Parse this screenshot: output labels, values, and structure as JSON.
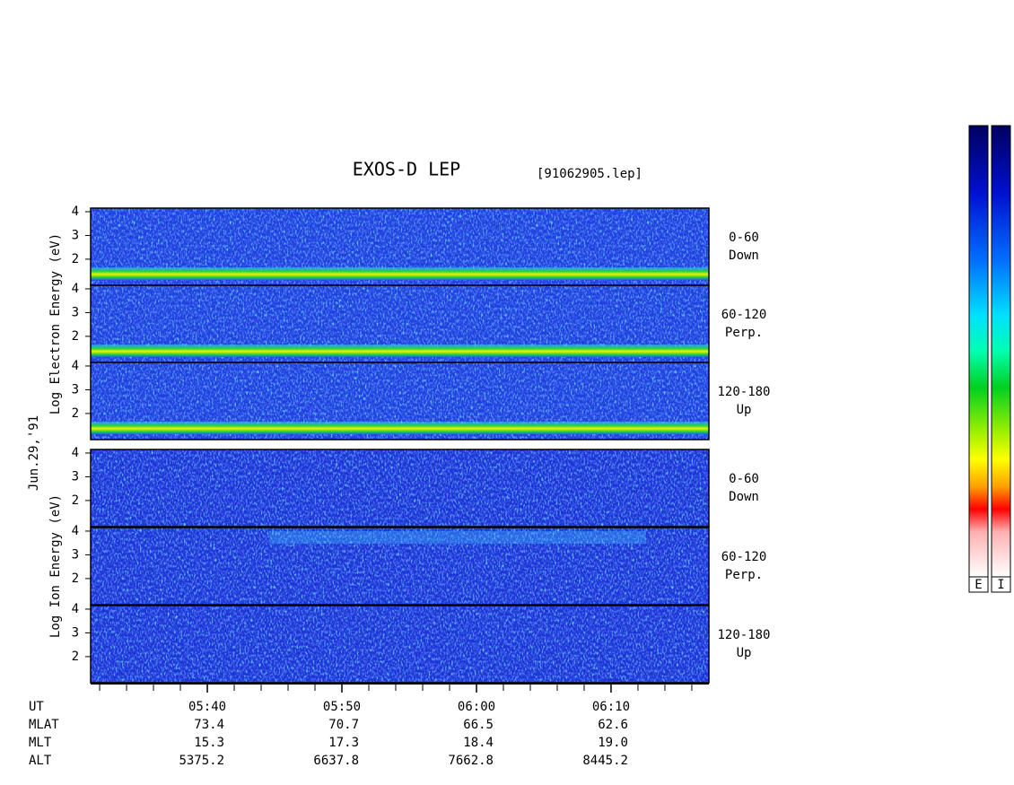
{
  "chart_data": {
    "type": "spectrogram",
    "title": "EXOS-D LEP",
    "file": "[91062905.lep]",
    "date": "Jun.29,'91",
    "xlim": [
      331.33,
      377.27
    ],
    "xticks": [
      {
        "value": 340,
        "label": "05:40"
      },
      {
        "value": 350,
        "label": "05:50"
      },
      {
        "value": 360,
        "label": "06:00"
      },
      {
        "value": 370,
        "label": "06:10"
      }
    ],
    "xminorticks": [
      332,
      334,
      336,
      338,
      340,
      342,
      344,
      346,
      348,
      350,
      352,
      354,
      356,
      358,
      360,
      362,
      364,
      366,
      368,
      370,
      372,
      374,
      376
    ],
    "ylim": [
      0.9,
      4.15
    ],
    "yticks": [
      2,
      3,
      4
    ],
    "x_label": "UT",
    "ephemeris": [
      {
        "label": "MLAT",
        "values": [
          "73.4",
          "70.7",
          "66.5",
          "62.6"
        ]
      },
      {
        "label": "MLT",
        "values": [
          "15.3",
          "17.3",
          "18.4",
          "19.0"
        ]
      },
      {
        "label": "ALT",
        "values": [
          "5375.2",
          "6637.8",
          "7662.8",
          "8445.2"
        ]
      }
    ],
    "groups": [
      {
        "ylabel": "Log Electron Energy (eV)",
        "panels": [
          {
            "angle": "0-60",
            "direction": "Down"
          },
          {
            "angle": "60-120",
            "direction": "Perp."
          },
          {
            "angle": "120-180",
            "direction": "Up"
          }
        ]
      },
      {
        "ylabel": "Log Ion Energy (eV)",
        "panels": [
          {
            "angle": "0-60",
            "direction": "Down"
          },
          {
            "angle": "60-120",
            "direction": "Perp."
          },
          {
            "angle": "120-180",
            "direction": "Up"
          }
        ]
      }
    ],
    "colorbar_labels": [
      "E",
      "I"
    ]
  }
}
